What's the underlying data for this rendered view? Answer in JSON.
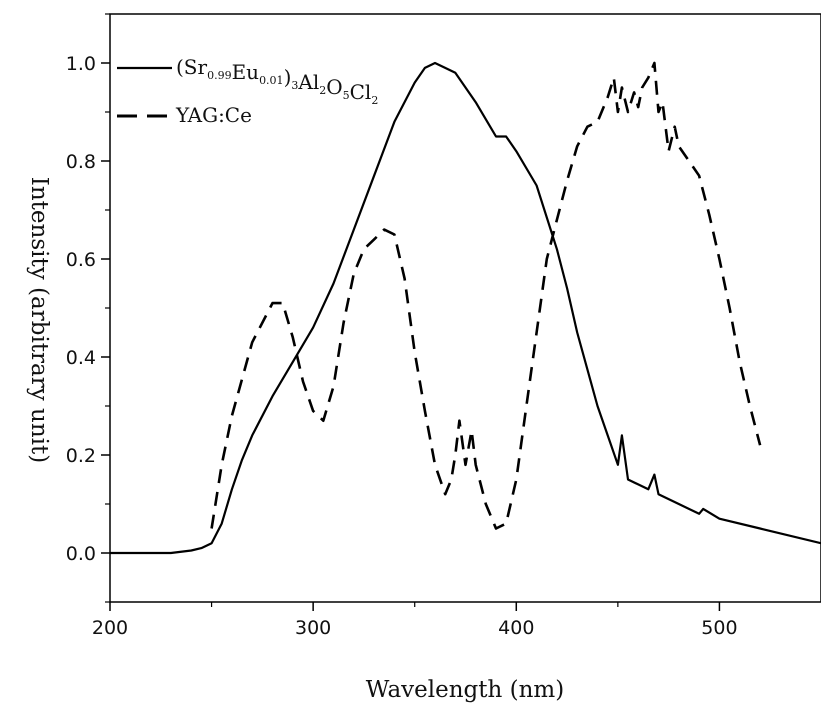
{
  "chart_data": {
    "type": "line",
    "title": "",
    "xlabel": "Wavelength (nm)",
    "ylabel": "Intensity (arbitrary unit)",
    "xlim": [
      200,
      550
    ],
    "ylim": [
      -0.1,
      1.1
    ],
    "x_ticks": [
      200,
      300,
      400,
      500
    ],
    "x_tick_labels": [
      "200",
      "300",
      "400",
      "500"
    ],
    "y_ticks": [
      0.0,
      0.2,
      0.4,
      0.6,
      0.8,
      1.0
    ],
    "y_tick_labels": [
      "0.0",
      "0.2",
      "0.4",
      "0.6",
      "0.8",
      "1.0"
    ],
    "grid": false,
    "legend_position": "top-left",
    "series": [
      {
        "name": "(Sr0.99Eu0.01)3Al2O5Cl2",
        "legend": {
          "parts": [
            {
              "t": "(Sr",
              "sub": false
            },
            {
              "t": "0.99",
              "sub": true
            },
            {
              "t": "Eu",
              "sub": false
            },
            {
              "t": "0.01",
              "sub": true
            },
            {
              "t": ")",
              "sub": false
            },
            {
              "t": "3",
              "sub": true
            },
            {
              "t": "Al",
              "sub": false
            },
            {
              "t": "2",
              "sub": true
            },
            {
              "t": "O",
              "sub": false
            },
            {
              "t": "5",
              "sub": true
            },
            {
              "t": "Cl",
              "sub": false
            },
            {
              "t": "2",
              "sub": true
            }
          ]
        },
        "style": "solid",
        "color": "#000000",
        "x": [
          200,
          230,
          240,
          245,
          250,
          255,
          260,
          265,
          270,
          280,
          290,
          300,
          310,
          320,
          330,
          340,
          350,
          355,
          360,
          365,
          370,
          380,
          390,
          395,
          400,
          410,
          420,
          425,
          430,
          440,
          445,
          450,
          452,
          455,
          460,
          465,
          468,
          470,
          480,
          490,
          492,
          500,
          520,
          550
        ],
        "y": [
          0.0,
          0.0,
          0.005,
          0.01,
          0.02,
          0.06,
          0.13,
          0.19,
          0.24,
          0.32,
          0.39,
          0.46,
          0.55,
          0.66,
          0.77,
          0.88,
          0.96,
          0.99,
          1.0,
          0.99,
          0.98,
          0.92,
          0.85,
          0.85,
          0.82,
          0.75,
          0.62,
          0.54,
          0.45,
          0.3,
          0.24,
          0.18,
          0.24,
          0.15,
          0.14,
          0.13,
          0.16,
          0.12,
          0.1,
          0.08,
          0.09,
          0.07,
          0.05,
          0.02
        ]
      },
      {
        "name": "YAG:Ce",
        "legend": {
          "parts": [
            {
              "t": "YAG:Ce",
              "sub": false
            }
          ]
        },
        "style": "dashed",
        "color": "#000000",
        "x": [
          250,
          255,
          260,
          270,
          280,
          285,
          290,
          295,
          300,
          305,
          310,
          315,
          320,
          325,
          330,
          335,
          340,
          345,
          350,
          355,
          360,
          365,
          368,
          370,
          372,
          375,
          378,
          380,
          385,
          390,
          395,
          400,
          405,
          410,
          415,
          420,
          425,
          430,
          435,
          440,
          445,
          448,
          450,
          452,
          455,
          458,
          460,
          462,
          465,
          468,
          470,
          472,
          475,
          478,
          480,
          485,
          490,
          495,
          500,
          505,
          510,
          515,
          520
        ],
        "y": [
          0.05,
          0.18,
          0.28,
          0.43,
          0.51,
          0.51,
          0.44,
          0.35,
          0.29,
          0.27,
          0.34,
          0.47,
          0.57,
          0.62,
          0.64,
          0.66,
          0.65,
          0.56,
          0.41,
          0.29,
          0.18,
          0.12,
          0.15,
          0.2,
          0.27,
          0.18,
          0.25,
          0.18,
          0.1,
          0.05,
          0.06,
          0.15,
          0.3,
          0.45,
          0.6,
          0.68,
          0.76,
          0.83,
          0.87,
          0.88,
          0.93,
          0.97,
          0.9,
          0.95,
          0.9,
          0.94,
          0.91,
          0.95,
          0.97,
          1.0,
          0.9,
          0.92,
          0.82,
          0.87,
          0.83,
          0.8,
          0.77,
          0.69,
          0.6,
          0.5,
          0.39,
          0.3,
          0.22
        ]
      }
    ]
  }
}
